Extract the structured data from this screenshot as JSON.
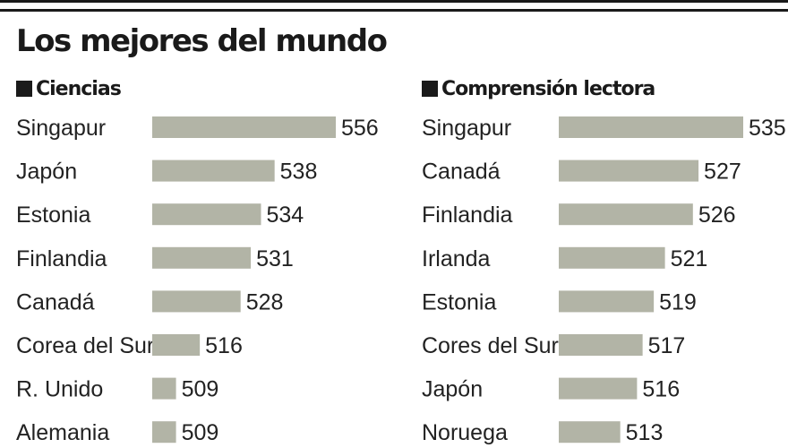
{
  "title": "Los mejores del mundo",
  "colors": {
    "bar": "#b2b4a6",
    "text": "#1a1a1a"
  },
  "chart_data": [
    {
      "type": "bar",
      "orientation": "horizontal",
      "title": "Ciencias",
      "categories": [
        "Singapur",
        "Japón",
        "Estonia",
        "Finlandia",
        "Canadá",
        "Corea del Sur",
        "R. Unido",
        "Alemania"
      ],
      "values": [
        556,
        538,
        534,
        531,
        528,
        516,
        509,
        509
      ]
    },
    {
      "type": "bar",
      "orientation": "horizontal",
      "title": "Comprensión lectora",
      "categories": [
        "Singapur",
        "Canadá",
        "Finlandia",
        "Irlanda",
        "Estonia",
        "Cores del Sur",
        "Japón",
        "Noruega"
      ],
      "values": [
        535,
        527,
        526,
        521,
        519,
        517,
        516,
        513
      ]
    }
  ]
}
